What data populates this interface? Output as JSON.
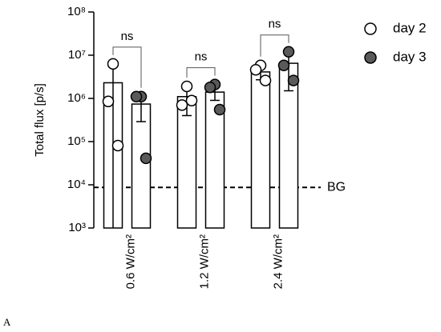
{
  "chart_data": {
    "type": "bar",
    "ylabel": "Total flux [p/s]",
    "log_scale": true,
    "categories": [
      "0.6 W/cm²",
      "1.2 W/cm²",
      "2.4 W/cm²"
    ],
    "ylim": [
      1000,
      100000000
    ],
    "yticks": [
      {
        "value": 1000,
        "label": "10³"
      },
      {
        "value": 10000,
        "label": "10⁴"
      },
      {
        "value": 100000,
        "label": "10⁵"
      },
      {
        "value": 1000000,
        "label": "10⁶"
      },
      {
        "value": 10000000,
        "label": "10⁷"
      },
      {
        "value": 100000000,
        "label": "10⁸"
      }
    ],
    "series": [
      {
        "name": "day 2",
        "color": "#ffffff",
        "values": [
          2300000,
          1100000,
          4100000
        ],
        "errors": [
          4800000,
          700000,
          1400000
        ],
        "points": [
          [
            6300000,
            850000,
            81000
          ],
          [
            1900000,
            700000,
            890000
          ],
          [
            5800000,
            4600000,
            2600000
          ]
        ]
      },
      {
        "name": "day 3",
        "color": "#5a5a5a",
        "values": [
          740000,
          1400000,
          6500000
        ],
        "errors": [
          450000,
          500000,
          5000000
        ],
        "points": [
          [
            1100000,
            1100000,
            41000
          ],
          [
            2100000,
            1800000,
            550000
          ],
          [
            12000000,
            5800000,
            2600000
          ]
        ]
      }
    ],
    "reference_line": {
      "value": 8700,
      "label": "BG"
    },
    "annotations": [
      "ns",
      "ns",
      "ns"
    ],
    "figure_label": "A"
  }
}
